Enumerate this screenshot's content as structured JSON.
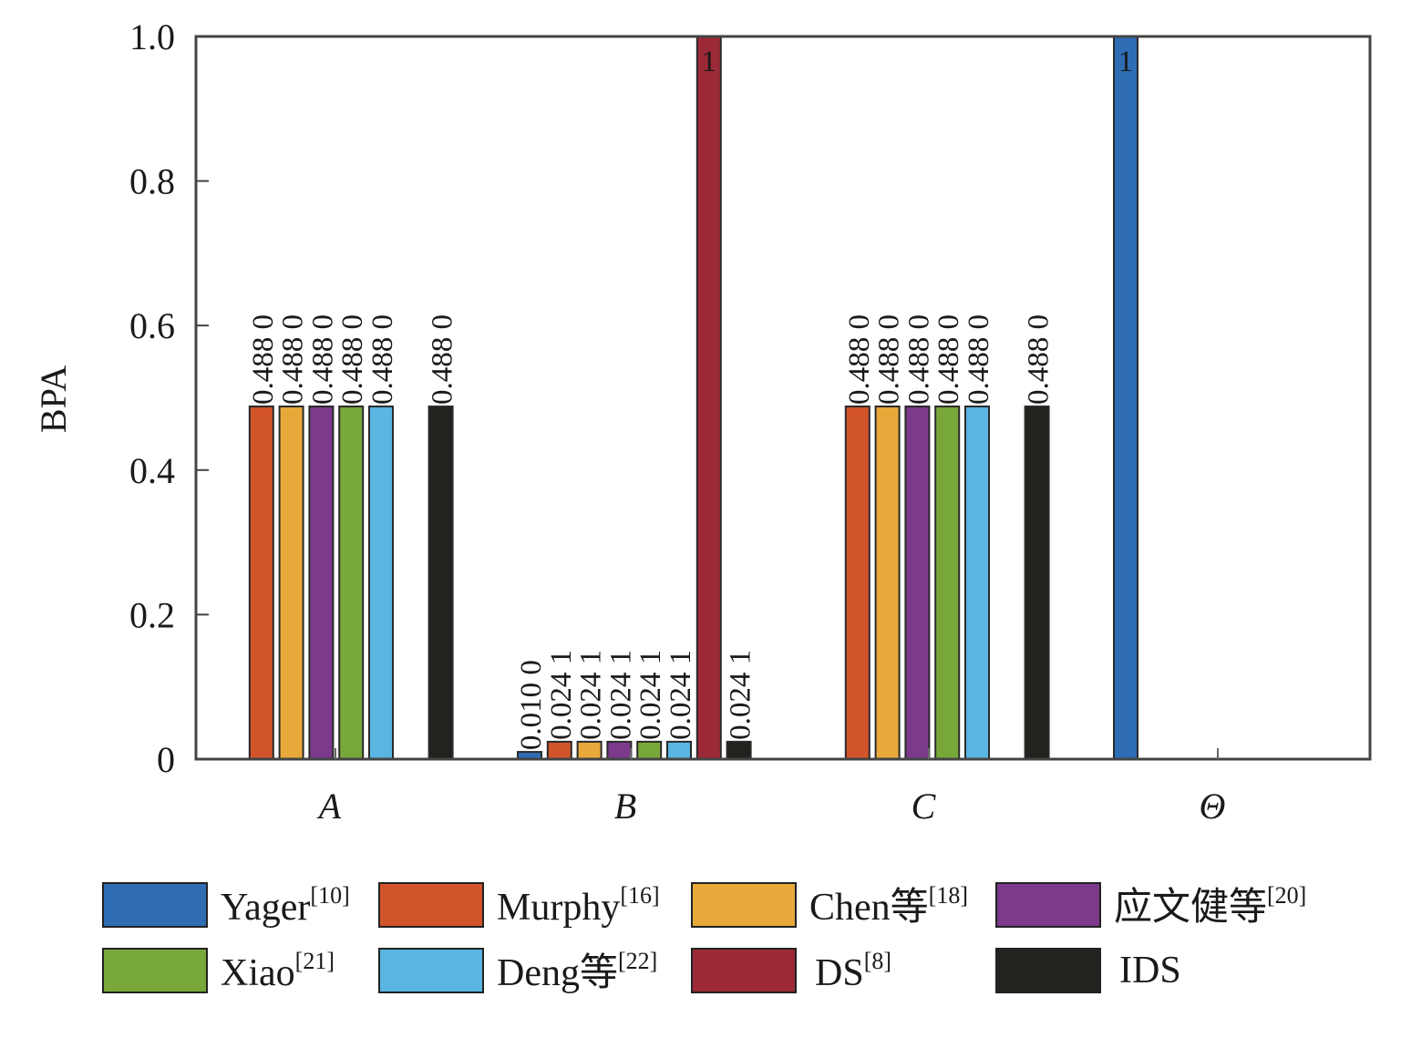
{
  "chart_data": {
    "type": "bar",
    "title": "",
    "xlabel": "",
    "ylabel": "BPA",
    "ylim": [
      0,
      1.0
    ],
    "yticks": [
      0,
      0.2,
      0.4,
      0.6,
      0.8,
      1.0
    ],
    "ytick_labels": [
      "0",
      "0.2",
      "0.4",
      "0.6",
      "0.8",
      "1.0"
    ],
    "grid": false,
    "categories": [
      "A",
      "B",
      "C",
      "Θ"
    ],
    "legend_position": "bottom",
    "series": [
      {
        "name": "Yager",
        "ref": "[10]",
        "color": "#2e6db4",
        "values": [
          0,
          0.01,
          0,
          1
        ],
        "labels": [
          "",
          "0.010 0",
          "",
          "1"
        ]
      },
      {
        "name": "Murphy",
        "ref": "[16]",
        "color": "#d2542b",
        "values": [
          0.488,
          0.0241,
          0.488,
          0
        ],
        "labels": [
          "0.488 0",
          "0.024 1",
          "0.488 0",
          ""
        ]
      },
      {
        "name": "Chen等",
        "ref": "[18]",
        "color": "#e8a93a",
        "values": [
          0.488,
          0.0241,
          0.488,
          0
        ],
        "labels": [
          "0.488 0",
          "0.024 1",
          "0.488 0",
          ""
        ]
      },
      {
        "name": "应文健等",
        "ref": "[20]",
        "color": "#7b3a8b",
        "values": [
          0.488,
          0.0241,
          0.488,
          0
        ],
        "labels": [
          "0.488 0",
          "0.024 1",
          "0.488 0",
          ""
        ]
      },
      {
        "name": "Xiao",
        "ref": "[21]",
        "color": "#78a73a",
        "values": [
          0.488,
          0.0241,
          0.488,
          0
        ],
        "labels": [
          "0.488 0",
          "0.024 1",
          "0.488 0",
          ""
        ]
      },
      {
        "name": "Deng等",
        "ref": "[22]",
        "color": "#5ab5e2",
        "values": [
          0.488,
          0.0241,
          0.488,
          0
        ],
        "labels": [
          "0.488 0",
          "0.024 1",
          "0.488 0",
          ""
        ]
      },
      {
        "name": "DS",
        "ref": "[8]",
        "color": "#9b2a36",
        "values": [
          0,
          1,
          0,
          0
        ],
        "labels": [
          "",
          "1",
          "",
          ""
        ]
      },
      {
        "name": "IDS",
        "ref": "",
        "color": "#22221e",
        "values": [
          0.488,
          0.0241,
          0.488,
          0
        ],
        "labels": [
          "0.488 0",
          "0.024 1",
          "0.488 0",
          ""
        ]
      }
    ]
  }
}
